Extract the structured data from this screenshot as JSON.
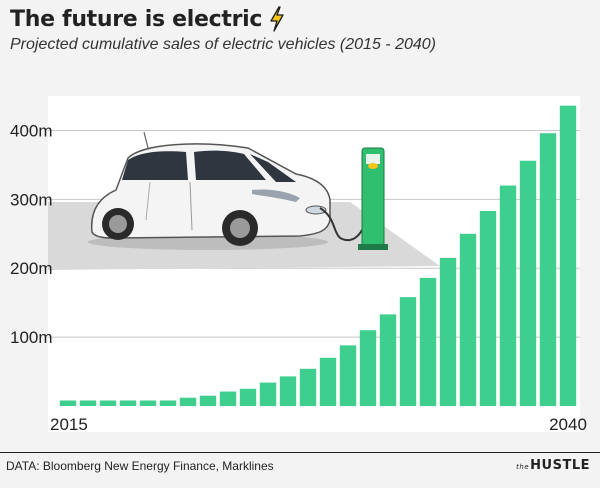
{
  "title": "The future is electric",
  "subtitle": "Projected cumulative sales of electric vehicles (2015 - 2040)",
  "source": "DATA: Bloomberg New Energy Finance, Marklines",
  "brand": {
    "prefix": "the",
    "name": "HUSTLE"
  },
  "icons": {
    "title_icon": "lightning-bolt-icon",
    "illustration": "electric-car-charging-icon"
  },
  "colors": {
    "bar": "#3ecf8e",
    "grid": "#c8c8c8",
    "panel": "#ffffff",
    "background": "#f3f3f3",
    "bolt": "#f5c518"
  },
  "chart_data": {
    "type": "bar",
    "categories": [
      "2015",
      "2016",
      "2017",
      "2018",
      "2019",
      "2020",
      "2021",
      "2022",
      "2023",
      "2024",
      "2025",
      "2026",
      "2027",
      "2028",
      "2029",
      "2030",
      "2031",
      "2032",
      "2033",
      "2034",
      "2035",
      "2036",
      "2037",
      "2038",
      "2039",
      "2040"
    ],
    "values": [
      8,
      8,
      8,
      8,
      8,
      8,
      12,
      15,
      21,
      25,
      34,
      43,
      54,
      70,
      88,
      110,
      133,
      158,
      186,
      215,
      250,
      283,
      320,
      356,
      396,
      436
    ],
    "ylim": [
      0,
      450
    ],
    "yticks": [
      100,
      200,
      300,
      400
    ],
    "ytick_labels": [
      "100m",
      "200m",
      "300m",
      "400m"
    ],
    "xtick_labels": [
      {
        "index": 0,
        "label": "2015"
      },
      {
        "index": 25,
        "label": "2040"
      }
    ],
    "grid": true,
    "xlabel": "",
    "ylabel": ""
  }
}
